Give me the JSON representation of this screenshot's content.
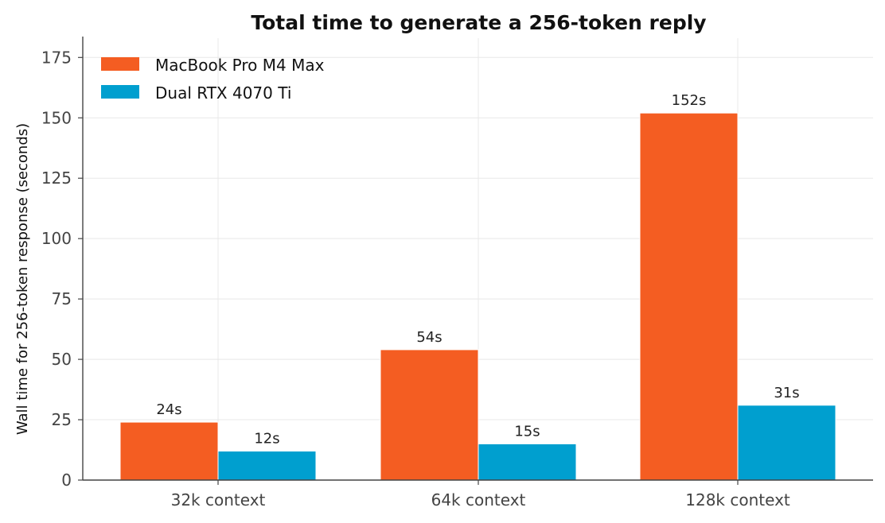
{
  "chart_data": {
    "type": "bar",
    "title": "Total time to generate a 256-token reply",
    "xlabel": "",
    "ylabel": "Wall time for 256-token response (seconds)",
    "categories": [
      "32k context",
      "64k context",
      "128k context"
    ],
    "series": [
      {
        "name": "MacBook Pro M4 Max",
        "color": "#f45d22",
        "values": [
          24,
          54,
          152
        ],
        "labels": [
          "24s",
          "54s",
          "152s"
        ]
      },
      {
        "name": "Dual RTX 4070 Ti",
        "color": "#009fcf",
        "values": [
          12,
          15,
          31
        ],
        "labels": [
          "12s",
          "15s",
          "31s"
        ]
      }
    ],
    "ylim": [
      0,
      183
    ],
    "yticks": [
      0,
      25,
      50,
      75,
      100,
      125,
      150,
      175
    ],
    "grid": true,
    "legend_position": "top-left"
  }
}
